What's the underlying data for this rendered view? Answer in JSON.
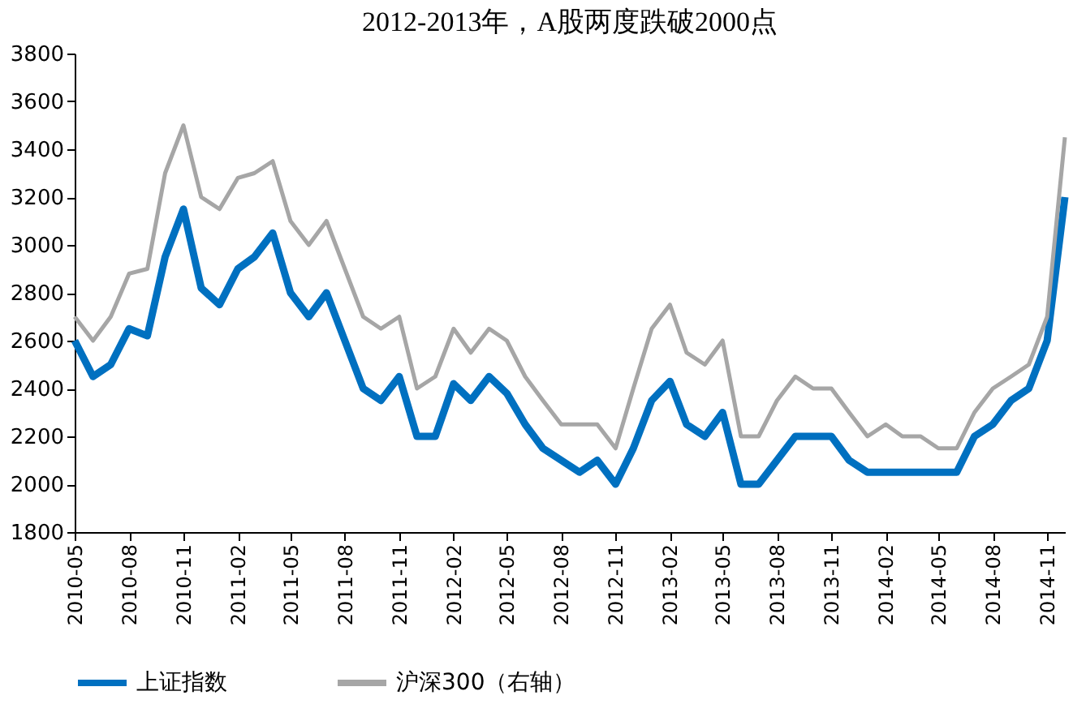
{
  "chart_data": {
    "type": "line",
    "title": "2012-2013年，A股两度跌破2000点",
    "x": [
      "2010-05",
      "2010-06",
      "2010-07",
      "2010-08",
      "2010-09",
      "2010-10",
      "2010-11",
      "2010-12",
      "2011-01",
      "2011-02",
      "2011-03",
      "2011-04",
      "2011-05",
      "2011-06",
      "2011-07",
      "2011-08",
      "2011-09",
      "2011-10",
      "2011-11",
      "2011-12",
      "2012-01",
      "2012-02",
      "2012-03",
      "2012-04",
      "2012-05",
      "2012-06",
      "2012-07",
      "2012-08",
      "2012-09",
      "2012-10",
      "2012-11",
      "2012-12",
      "2013-01",
      "2013-02",
      "2013-03",
      "2013-04",
      "2013-05",
      "2013-06",
      "2013-07",
      "2013-08",
      "2013-09",
      "2013-10",
      "2013-11",
      "2013-12",
      "2014-01",
      "2014-02",
      "2014-03",
      "2014-04",
      "2014-05",
      "2014-06",
      "2014-07",
      "2014-08",
      "2014-09",
      "2014-10",
      "2014-11",
      "2014-12"
    ],
    "series": [
      {
        "name": "上证指数",
        "color": "#0070c0",
        "values": [
          2600,
          2450,
          2500,
          2650,
          2620,
          2950,
          3150,
          2820,
          2750,
          2900,
          2950,
          3050,
          2800,
          2700,
          2800,
          2600,
          2400,
          2350,
          2450,
          2200,
          2200,
          2420,
          2350,
          2450,
          2380,
          2250,
          2150,
          2100,
          2050,
          2100,
          2000,
          2150,
          2350,
          2430,
          2250,
          2200,
          2300,
          2000,
          2000,
          2100,
          2200,
          2200,
          2200,
          2100,
          2050,
          2050,
          2050,
          2050,
          2050,
          2050,
          2200,
          2250,
          2350,
          2400,
          2600,
          3200
        ]
      },
      {
        "name": "沪深300（右轴）",
        "color": "#a6a6a6",
        "values": [
          2700,
          2600,
          2700,
          2880,
          2900,
          3300,
          3500,
          3200,
          3150,
          3280,
          3300,
          3350,
          3100,
          3000,
          3100,
          2900,
          2700,
          2650,
          2700,
          2400,
          2450,
          2650,
          2550,
          2650,
          2600,
          2450,
          2350,
          2250,
          2250,
          2250,
          2150,
          2400,
          2650,
          2750,
          2550,
          2500,
          2600,
          2200,
          2200,
          2350,
          2450,
          2400,
          2400,
          2300,
          2200,
          2250,
          2200,
          2200,
          2150,
          2150,
          2300,
          2400,
          2450,
          2500,
          2700,
          3450
        ]
      }
    ],
    "xlim": [
      "2010-05",
      "2014-12"
    ],
    "xticks": [
      "2010-05",
      "2010-08",
      "2010-11",
      "2011-02",
      "2011-05",
      "2011-08",
      "2011-11",
      "2012-02",
      "2012-05",
      "2012-08",
      "2012-11",
      "2013-02",
      "2013-05",
      "2013-08",
      "2013-11",
      "2014-02",
      "2014-05",
      "2014-08",
      "2014-11"
    ],
    "ylim": [
      1800,
      3800
    ],
    "yticks": [
      1800,
      2000,
      2200,
      2400,
      2600,
      2800,
      3000,
      3200,
      3400,
      3600,
      3800
    ],
    "legend": "bottom",
    "grid": false,
    "marker": "none",
    "line_style": "solid"
  }
}
